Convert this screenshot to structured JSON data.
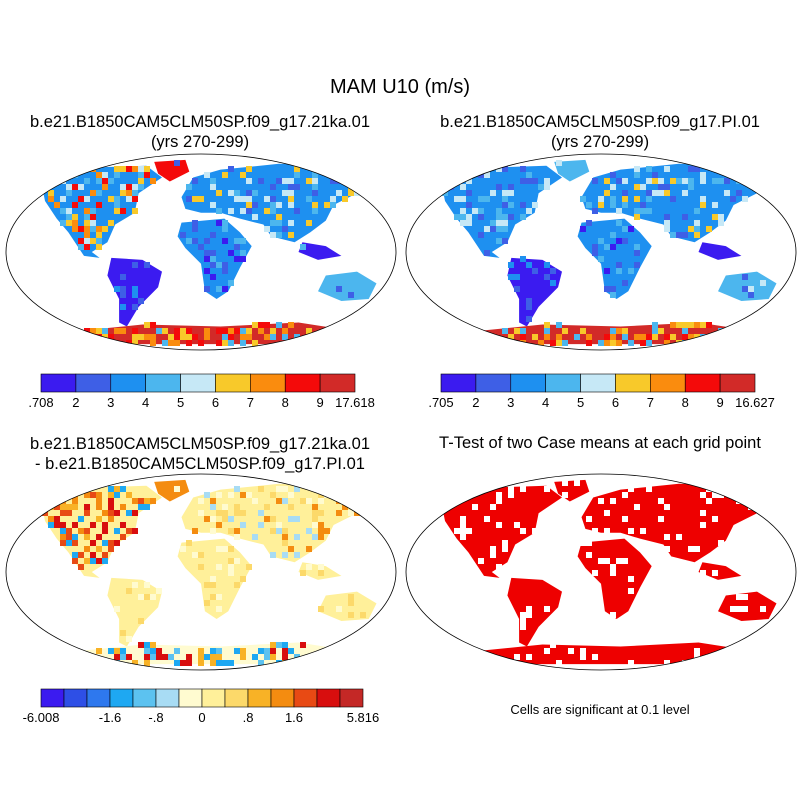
{
  "main_title": "MAM U10 (m/s)",
  "panels": {
    "top_left": {
      "title_line1": "b.e21.B1850CAM5CLM50SP.f09_g17.21ka.01",
      "title_line2": "(yrs 270-299)",
      "colorbar_labels": [
        ".708",
        "2",
        "3",
        "4",
        "5",
        "6",
        "7",
        "8",
        "9",
        "17.618"
      ],
      "colorbar_colors": [
        "#3b1bf0",
        "#3e5fe6",
        "#1e90f0",
        "#4cb6ee",
        "#c6e8f6",
        "#f8c92a",
        "#fa8c0e",
        "#f40a0a",
        "#d22a28"
      ]
    },
    "top_right": {
      "title_line1": "b.e21.B1850CAM5CLM50SP.f09_g17.PI.01",
      "title_line2": "(yrs 270-299)",
      "colorbar_labels": [
        ".705",
        "2",
        "3",
        "4",
        "5",
        "6",
        "7",
        "8",
        "9",
        "16.627"
      ],
      "colorbar_colors": [
        "#3b1bf0",
        "#3e5fe6",
        "#1e90f0",
        "#4cb6ee",
        "#c6e8f6",
        "#f8c92a",
        "#fa8c0e",
        "#f40a0a",
        "#d22a28"
      ]
    },
    "bottom_left": {
      "title_line1": "b.e21.B1850CAM5CLM50SP.f09_g17.21ka.01",
      "title_line2": "- b.e21.B1850CAM5CLM50SP.f09_g17.PI.01",
      "colorbar_labels": [
        "-6.008",
        "-1.6",
        "-.8",
        "0",
        ".8",
        "1.6",
        "5.816"
      ],
      "colorbar_colors": [
        "#3b1bf0",
        "#2e4fe6",
        "#2e78ee",
        "#1ea8f2",
        "#5cc2f0",
        "#a8dcf4",
        "#fffbd0",
        "#fff09a",
        "#fcd96a",
        "#f8b226",
        "#f48c10",
        "#e84a14",
        "#d80e0e",
        "#c42826"
      ]
    },
    "bottom_right": {
      "title": "T-Test of two Case means at each grid point",
      "note": "Cells are significant at 0.1 level",
      "fill_color": "#ee0000"
    }
  }
}
